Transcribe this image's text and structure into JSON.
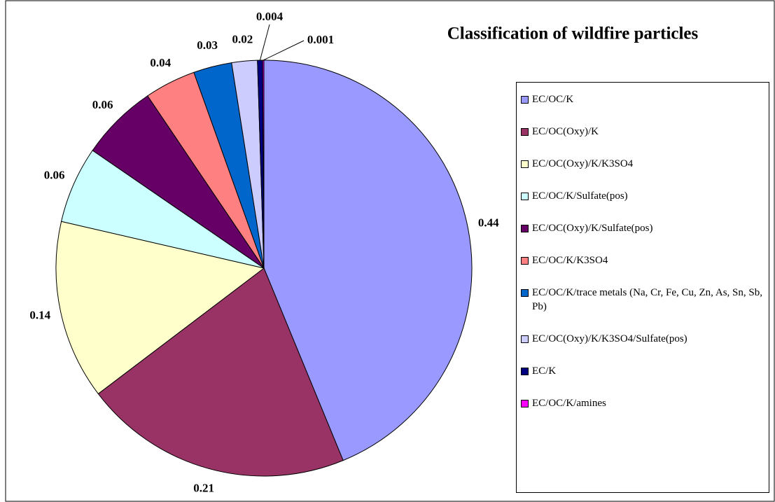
{
  "chart_data": {
    "type": "pie",
    "title": "Classification of wildfire particles",
    "categories": [
      "EC/OC/K",
      "EC/OC(Oxy)/K",
      "EC/OC(Oxy)/K/K3SO4",
      "EC/OC/K/Sulfate(pos)",
      "EC/OC(Oxy)/K/Sulfate(pos)",
      "EC/OC/K/K3SO4",
      "EC/OC/K/trace metals (Na, Cr, Fe, Cu, Zn, As, Sn, Sb, Pb)",
      "EC/OC(Oxy)/K/K3SO4/Sulfate(pos)",
      "EC/K",
      "EC/OC/K/amines"
    ],
    "values": [
      0.44,
      0.21,
      0.14,
      0.06,
      0.06,
      0.04,
      0.03,
      0.02,
      0.004,
      0.001
    ],
    "colors": [
      "#9999ff",
      "#993366",
      "#ffffcc",
      "#ccffff",
      "#660066",
      "#ff8080",
      "#0066cc",
      "#ccccff",
      "#000080",
      "#ff00ff"
    ]
  }
}
